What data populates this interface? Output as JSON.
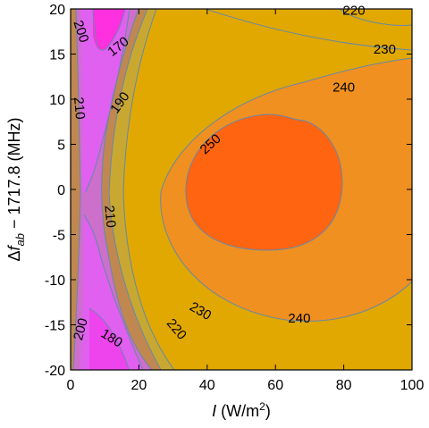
{
  "chart_data": {
    "type": "contour",
    "title": "",
    "xlabel": "I (W/m2)",
    "ylabel": "Δf_ab − 1717.8 (MHz)",
    "xlabel_parts": {
      "var": "I",
      "unit_pre": " (W/m",
      "unit_sup": "2",
      "unit_post": ")"
    },
    "ylabel_parts": {
      "pre": "Δ",
      "var": "f",
      "sub": "ab",
      "post": " − 1717.8 (MHz)"
    },
    "xlim": [
      0,
      100
    ],
    "ylim": [
      -20,
      20
    ],
    "x_ticks": [
      0,
      20,
      40,
      60,
      80,
      100
    ],
    "y_ticks": [
      -20,
      -15,
      -10,
      -5,
      0,
      5,
      10,
      15,
      20
    ],
    "grid": false,
    "legend": "none",
    "colors": {
      "fill_170": "#ff30e0",
      "fill_180": "#ee44ee",
      "fill_190": "#e060f0",
      "fill_200": "#cc70cc",
      "fill_210": "#c08850",
      "fill_220": "#c8a830",
      "fill_230": "#e0a800",
      "fill_240": "#f09020",
      "fill_250": "#ff6410",
      "contour_line": "#6688aa"
    },
    "contour_labels": [
      {
        "text": "170",
        "x": 14,
        "y": 15.8,
        "rotation": -38
      },
      {
        "text": "200",
        "x": 3,
        "y": 17.5,
        "rotation": 72
      },
      {
        "text": "190",
        "x": 14.5,
        "y": 9.6,
        "rotation": -55
      },
      {
        "text": "210",
        "x": 2.5,
        "y": 9,
        "rotation": 85
      },
      {
        "text": "220",
        "x": 83,
        "y": 19.8,
        "rotation": 0
      },
      {
        "text": "230",
        "x": 92,
        "y": 15.5,
        "rotation": 0
      },
      {
        "text": "240",
        "x": 80,
        "y": 11.3,
        "rotation": 0
      },
      {
        "text": "250",
        "x": 41,
        "y": 5,
        "rotation": -42
      },
      {
        "text": "210",
        "x": 11.5,
        "y": -3,
        "rotation": 85
      },
      {
        "text": "200",
        "x": 3,
        "y": -15.5,
        "rotation": -75
      },
      {
        "text": "180",
        "x": 12,
        "y": -16.5,
        "rotation": 32
      },
      {
        "text": "220",
        "x": 31,
        "y": -15.5,
        "rotation": 50
      },
      {
        "text": "230",
        "x": 38,
        "y": -13.5,
        "rotation": 30
      },
      {
        "text": "240",
        "x": 67,
        "y": -14.3,
        "rotation": 0
      }
    ]
  }
}
